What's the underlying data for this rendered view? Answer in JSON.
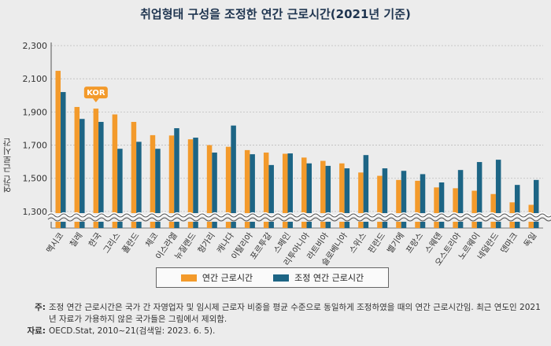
{
  "chart_data": {
    "type": "bar",
    "title": "취업형태 구성을 조정한 연간 근로시간(2021년 기준)",
    "ylabel": "연간 근로시간",
    "ylim": [
      1200,
      2300
    ],
    "yticks": [
      1300,
      1500,
      1700,
      1900,
      2100,
      2300
    ],
    "ytick_labels": [
      "1,300",
      "1,500",
      "1,700",
      "1,900",
      "2,100",
      "2,300"
    ],
    "axis_break": true,
    "grid": true,
    "legend_position": "bottom",
    "categories": [
      "멕시코",
      "칠레",
      "한국",
      "그리스",
      "폴란드",
      "체코",
      "이스라엘",
      "뉴질랜드",
      "헝가리",
      "캐나다",
      "이탈리아",
      "포르투갈",
      "스페인",
      "리투아니아",
      "라트비아",
      "슬로베니아",
      "스위스",
      "핀란드",
      "벨기에",
      "프랑스",
      "스웨덴",
      "오스트리아",
      "노르웨이",
      "네덜란드",
      "덴마크",
      "독일"
    ],
    "series": [
      {
        "name": "연간 근로시간",
        "color": "#f39a2b",
        "values": [
          2148,
          1930,
          1920,
          1885,
          1840,
          1760,
          1758,
          1735,
          1700,
          1690,
          1670,
          1655,
          1648,
          1625,
          1605,
          1590,
          1535,
          1515,
          1490,
          1485,
          1445,
          1440,
          1425,
          1405,
          1355,
          1340
        ]
      },
      {
        "name": "조정 연간 근로시간",
        "color": "#1d6585",
        "values": [
          2020,
          1858,
          1840,
          1678,
          1720,
          1678,
          1802,
          1745,
          1655,
          1818,
          1645,
          1580,
          1650,
          1590,
          1575,
          1560,
          1640,
          1560,
          1545,
          1525,
          1475,
          1550,
          1598,
          1612,
          1460,
          1490
        ]
      }
    ],
    "annotations": [
      {
        "label": "KOR",
        "category": "한국",
        "color": "#f39a2b"
      }
    ]
  },
  "notes": [
    {
      "key": "주:",
      "text": "조정 연간 근로시간은 국가 간 자영업자 및 임시제 근로자 비중을 평균 수준으로 동일하게 조정하였을 때의 연간 근로시간임. 최근 연도인 2021년 자료가 가용하지 않은 국가들은 그림에서 제외함."
    },
    {
      "key": "자료:",
      "text": "OECD.Stat, 2010~21(검색일: 2023. 6. 5)."
    }
  ]
}
